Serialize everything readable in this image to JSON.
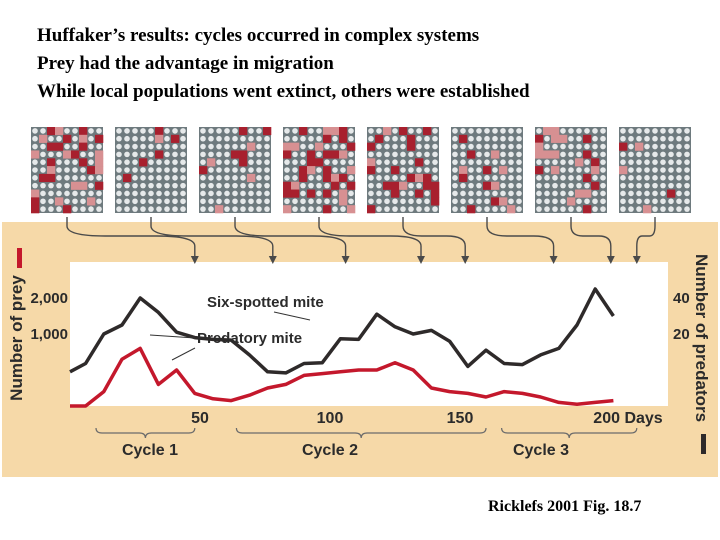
{
  "headline": {
    "line1": "Huffaker’s results: cycles occurred in complex systems",
    "line2": "Prey had the advantage in migration",
    "line3": "While local populations went extinct, others were established"
  },
  "citation": "Ricklefs 2001 Fig. 18.7",
  "colors": {
    "panel": "#f6d9a8",
    "plot": "#ffffff",
    "prey": "#2e2a2a",
    "predator": "#c4182c",
    "tile_bg": "#6e7a7e",
    "tile_dot": "#e6e9ea",
    "tile_heavy": "#a8202e",
    "tile_light": "#d79092",
    "axis_text": "#2b2b2b"
  },
  "chart_data": {
    "type": "line",
    "xlabel": "Days",
    "ylabel_left": "Number of prey",
    "ylabel_right": "Number of predators",
    "xlim": [
      0,
      230
    ],
    "ylim_left": [
      -1000,
      3000
    ],
    "ylim_right": [
      -20,
      60
    ],
    "x_ticks": [
      {
        "value": 50,
        "label": "50"
      },
      {
        "value": 100,
        "label": "100"
      },
      {
        "value": 150,
        "label": "150"
      },
      {
        "value": 200,
        "label": "200 Days"
      }
    ],
    "y_ticks_left": [
      {
        "value": 1000,
        "label": "1,000"
      },
      {
        "value": 2000,
        "label": "2,000"
      }
    ],
    "y_ticks_right": [
      {
        "value": 20,
        "label": "20"
      },
      {
        "value": 40,
        "label": "40"
      }
    ],
    "series": [
      {
        "name": "Six-spotted mite",
        "axis": "left",
        "x": [
          0,
          6,
          13,
          20,
          27,
          34,
          41,
          48,
          55,
          62,
          69,
          76,
          83,
          90,
          97,
          104,
          111,
          118,
          125,
          132,
          139,
          146,
          153,
          160,
          167,
          174,
          181,
          188,
          195,
          202,
          209
        ],
        "y": [
          -50,
          180,
          1000,
          1250,
          2000,
          1600,
          1050,
          900,
          850,
          830,
          420,
          -50,
          -80,
          180,
          200,
          870,
          850,
          1550,
          1200,
          1000,
          1100,
          800,
          100,
          550,
          180,
          150,
          420,
          600,
          1250,
          2250,
          1500
        ]
      },
      {
        "name": "Predatory mite",
        "axis": "right",
        "x": [
          0,
          6,
          13,
          20,
          27,
          34,
          41,
          48,
          55,
          62,
          69,
          76,
          83,
          90,
          97,
          104,
          111,
          118,
          125,
          132,
          139,
          146,
          153,
          160,
          167,
          174,
          181,
          188,
          195,
          202,
          209
        ],
        "y": [
          -20,
          -20,
          -12,
          6,
          12,
          -8,
          0,
          -13,
          -16,
          -17,
          -14,
          -10,
          -8,
          -3,
          -2,
          -1,
          0,
          0,
          4,
          0,
          -10,
          -12,
          -13,
          -15,
          -12,
          -13,
          -15,
          -18,
          -19,
          -18,
          -17
        ]
      }
    ],
    "series_labels": [
      "Six-spotted mite",
      "Predatory mite"
    ],
    "annotations": [
      "Cycle 1",
      "Cycle 2",
      "Cycle 3"
    ]
  }
}
